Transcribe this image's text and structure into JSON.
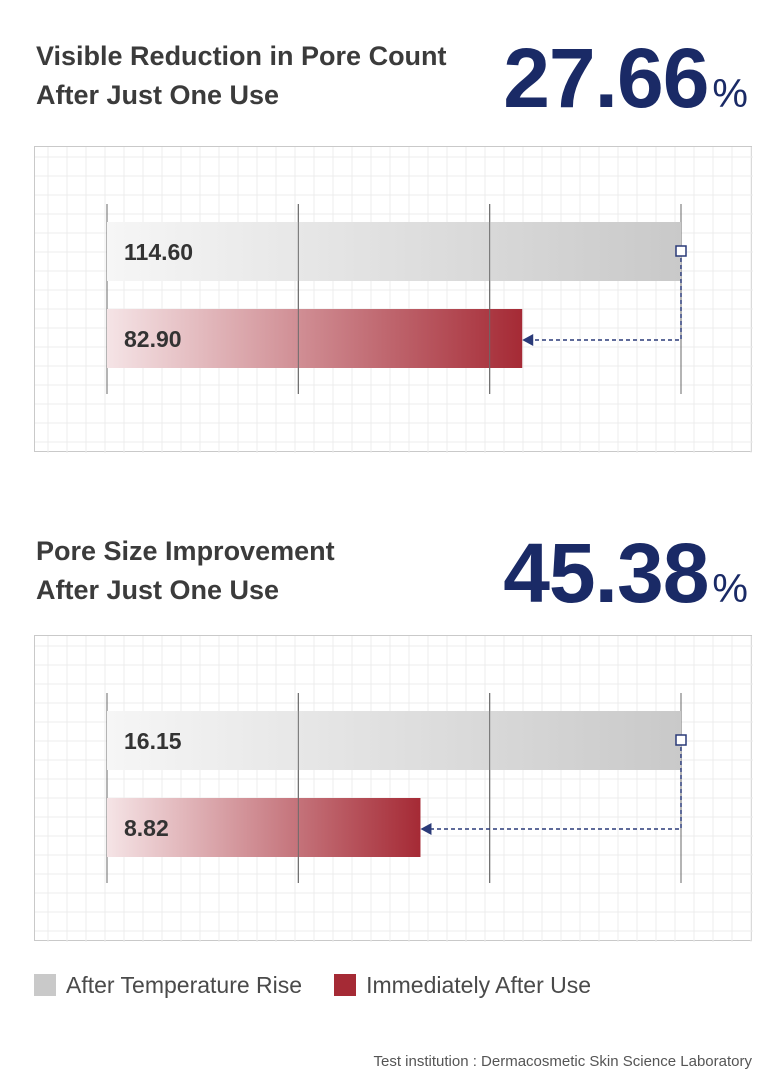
{
  "sections": [
    {
      "title_line1": "Visible Reduction in Pore Count",
      "title_line2": "After Just One Use",
      "percent_value": "27.66",
      "percent_sign": "%"
    },
    {
      "title_line1": "Pore Size Improvement",
      "title_line2": "After Just One Use",
      "percent_value": "45.38",
      "percent_sign": "%"
    }
  ],
  "chart_data": [
    {
      "type": "bar",
      "orientation": "horizontal",
      "series": [
        {
          "name": "After Temperature Rise",
          "value": 114.6,
          "label": "114.60",
          "color": "#c9c9c9"
        },
        {
          "name": "Immediately After Use",
          "value": 82.9,
          "label": "82.90",
          "color": "#a52a35"
        }
      ],
      "xlim": [
        0,
        114.6
      ],
      "grid": true
    },
    {
      "type": "bar",
      "orientation": "horizontal",
      "series": [
        {
          "name": "After Temperature Rise",
          "value": 16.15,
          "label": "16.15",
          "color": "#c9c9c9"
        },
        {
          "name": "Immediately After Use",
          "value": 8.82,
          "label": "8.82",
          "color": "#a52a35"
        }
      ],
      "xlim": [
        0,
        16.15
      ],
      "grid": true
    }
  ],
  "legend": [
    {
      "label": "After Temperature Rise",
      "color": "#c9c9c9"
    },
    {
      "label": "Immediately After Use",
      "color": "#a52a35"
    }
  ],
  "footer": "Test institution : Dermacosmetic Skin Science Laboratory",
  "colors": {
    "accent": "#1a2a66",
    "arrow": "#2a3a78"
  }
}
